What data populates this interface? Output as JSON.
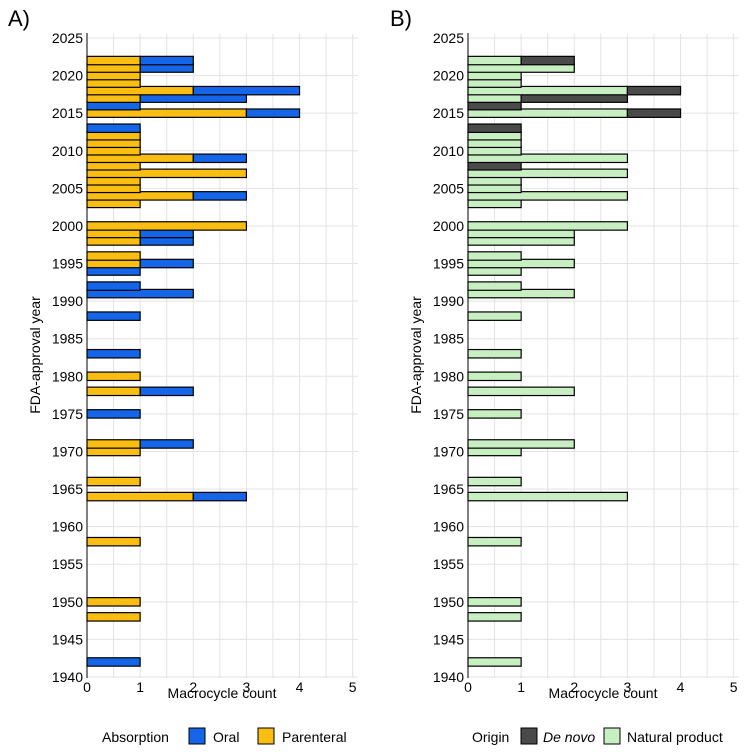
{
  "chart_data": [
    {
      "type": "bar",
      "orientation": "horizontal",
      "stacked": true,
      "panel_label": "A)",
      "xlabel": "Macrocycle count",
      "ylabel": "FDA-approval year",
      "xlim": [
        0,
        5.1
      ],
      "ylim": [
        1940,
        2025
      ],
      "xticks": [
        0,
        1,
        2,
        3,
        4,
        5
      ],
      "yticks": [
        1940,
        1945,
        1950,
        1955,
        1960,
        1965,
        1970,
        1975,
        1980,
        1985,
        1990,
        1995,
        2000,
        2005,
        2010,
        2015,
        2020,
        2025
      ],
      "legend_title": "Absorption",
      "legend_position": "bottom",
      "series": [
        {
          "name": "Parenteral",
          "color": "#FABD12"
        },
        {
          "name": "Oral",
          "color": "#1565E8"
        }
      ],
      "years": [
        1942,
        1948,
        1950,
        1958,
        1964,
        1966,
        1970,
        1971,
        1975,
        1978,
        1980,
        1983,
        1988,
        1991,
        1992,
        1994,
        1995,
        1996,
        1998,
        1999,
        2000,
        2003,
        2004,
        2005,
        2006,
        2007,
        2008,
        2009,
        2010,
        2011,
        2012,
        2013,
        2015,
        2016,
        2017,
        2018,
        2019,
        2020,
        2021,
        2022
      ],
      "Parenteral": [
        0,
        1,
        1,
        1,
        2,
        1,
        1,
        1,
        0,
        1,
        1,
        0,
        0,
        0,
        0,
        0,
        1,
        1,
        1,
        1,
        3,
        1,
        2,
        1,
        1,
        3,
        1,
        2,
        1,
        1,
        1,
        0,
        3,
        0,
        1,
        2,
        1,
        1,
        1,
        1
      ],
      "Oral": [
        1,
        0,
        0,
        0,
        1,
        0,
        0,
        1,
        1,
        1,
        0,
        1,
        1,
        2,
        1,
        1,
        1,
        0,
        1,
        1,
        0,
        0,
        1,
        0,
        0,
        0,
        0,
        1,
        0,
        0,
        0,
        1,
        1,
        1,
        2,
        2,
        0,
        0,
        1,
        1
      ]
    },
    {
      "type": "bar",
      "orientation": "horizontal",
      "stacked": true,
      "panel_label": "B)",
      "xlabel": "Macrocycle count",
      "ylabel": "FDA-approval year",
      "xlim": [
        0,
        5.1
      ],
      "ylim": [
        1940,
        2025
      ],
      "xticks": [
        0,
        1,
        2,
        3,
        4,
        5
      ],
      "yticks": [
        1940,
        1945,
        1950,
        1955,
        1960,
        1965,
        1970,
        1975,
        1980,
        1985,
        1990,
        1995,
        2000,
        2005,
        2010,
        2015,
        2020,
        2025
      ],
      "legend_title": "Origin",
      "legend_position": "bottom",
      "series": [
        {
          "name": "Natural product",
          "color": "#C8EFC1"
        },
        {
          "name": "De novo",
          "color": "#4A4A4A"
        }
      ],
      "years": [
        1942,
        1948,
        1950,
        1958,
        1964,
        1966,
        1970,
        1971,
        1975,
        1978,
        1980,
        1983,
        1988,
        1991,
        1992,
        1994,
        1995,
        1996,
        1998,
        1999,
        2000,
        2003,
        2004,
        2005,
        2006,
        2007,
        2008,
        2009,
        2010,
        2011,
        2012,
        2013,
        2015,
        2016,
        2017,
        2018,
        2019,
        2020,
        2021,
        2022
      ],
      "Natural product": [
        1,
        1,
        1,
        1,
        3,
        1,
        1,
        2,
        1,
        2,
        1,
        1,
        1,
        2,
        1,
        1,
        2,
        1,
        2,
        2,
        3,
        1,
        3,
        1,
        1,
        3,
        0,
        3,
        1,
        1,
        1,
        0,
        3,
        0,
        1,
        3,
        1,
        1,
        2,
        1
      ],
      "De novo": [
        0,
        0,
        0,
        0,
        0,
        0,
        0,
        0,
        0,
        0,
        0,
        0,
        0,
        0,
        0,
        0,
        0,
        0,
        0,
        0,
        0,
        0,
        0,
        0,
        0,
        0,
        1,
        0,
        0,
        0,
        0,
        1,
        1,
        1,
        2,
        1,
        0,
        0,
        0,
        1
      ]
    }
  ]
}
